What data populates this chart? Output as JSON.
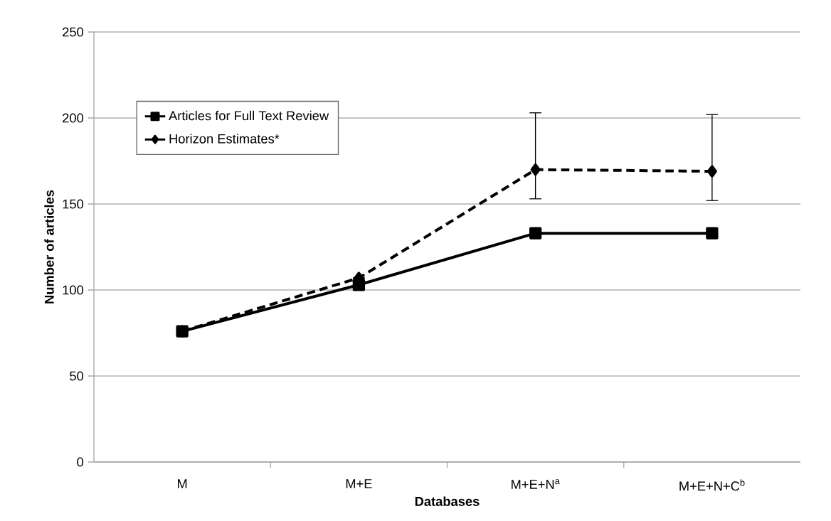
{
  "chart_data": {
    "type": "line",
    "xlabel": "Databases",
    "ylabel": "Number of articles",
    "categories": [
      "M",
      "M+E",
      "M+E+N$^{a}$",
      "M+E+N+C$^{b}$"
    ],
    "series": [
      {
        "name": "Articles for Full Text Review",
        "color": "#000000",
        "values": [
          76,
          103,
          133,
          133
        ],
        "marker": "square",
        "line_style": "solid"
      },
      {
        "name": "Horizon Estimates*",
        "color": "#000000",
        "values": [
          76,
          107,
          170,
          169
        ],
        "marker": "diamond",
        "line_style": "dashed",
        "errors": [
          null,
          null,
          [
            153,
            203
          ],
          [
            152,
            202
          ]
        ]
      }
    ],
    "ylim": [
      0,
      250
    ],
    "yticks": [
      0,
      50,
      100,
      150,
      200,
      250
    ],
    "grid": "y",
    "legend": "top left"
  }
}
